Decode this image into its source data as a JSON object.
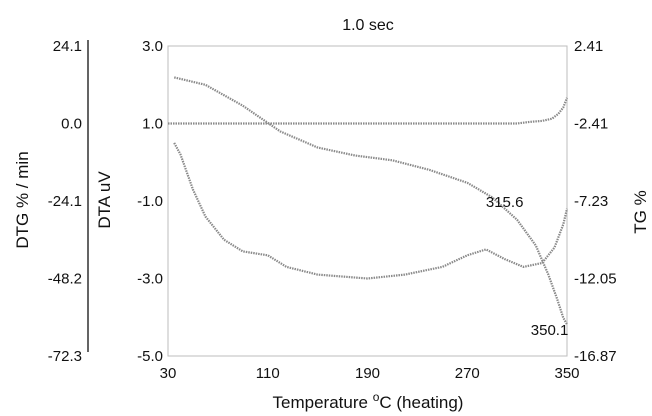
{
  "chart_data": {
    "type": "line",
    "title": "1.0 sec",
    "xlabel": "Temperature °C (heating)",
    "xlabel_parts": {
      "prefix": "Temperature ",
      "sup": "o",
      "suffix": "C (heating)"
    },
    "x_ticks": [
      "30",
      "110",
      "190",
      "270",
      "350"
    ],
    "xlim": [
      30,
      350
    ],
    "axes": {
      "dtg": {
        "label": "DTG % / min",
        "ticks": [
          "24.1",
          "0.0",
          "-24.1",
          "-48.2",
          "-72.3"
        ],
        "ylim": [
          -72.3,
          24.1
        ]
      },
      "dta": {
        "label": "DTA uV",
        "ticks": [
          "3.0",
          "1.0",
          "-1.0",
          "-3.0",
          "-5.0"
        ],
        "ylim": [
          -5.0,
          3.0
        ]
      },
      "tg": {
        "label": "TG %",
        "ticks": [
          "2.41",
          "-2.41",
          "-7.23",
          "-12.05",
          "-16.87"
        ],
        "ylim": [
          -16.87,
          2.41
        ]
      }
    },
    "annotations": [
      {
        "text": "315.6",
        "x": 300,
        "y_dta": -1.0
      },
      {
        "text": "350.1",
        "x": 336,
        "y_dta": -4.3
      }
    ],
    "series": [
      {
        "axis": "dtg",
        "color": "#8a8a8a",
        "points": [
          [
            30,
            0.0
          ],
          [
            70,
            0.0
          ],
          [
            150,
            0.0
          ],
          [
            250,
            0.0
          ],
          [
            310,
            0.0
          ],
          [
            320,
            0.5
          ],
          [
            330,
            0.8
          ],
          [
            338,
            1.5
          ],
          [
            343,
            3.0
          ],
          [
            347,
            5.0
          ],
          [
            350,
            8.0
          ]
        ]
      },
      {
        "axis": "tg",
        "color": "#8a8a8a",
        "points": [
          [
            35,
            0.46
          ],
          [
            60,
            0.0
          ],
          [
            90,
            -1.3
          ],
          [
            120,
            -2.9
          ],
          [
            150,
            -3.9
          ],
          [
            180,
            -4.4
          ],
          [
            210,
            -4.7
          ],
          [
            240,
            -5.3
          ],
          [
            270,
            -6.1
          ],
          [
            290,
            -7.0
          ],
          [
            310,
            -8.4
          ],
          [
            325,
            -10.0
          ],
          [
            335,
            -11.8
          ],
          [
            342,
            -13.3
          ],
          [
            347,
            -14.5
          ],
          [
            350,
            -14.9
          ]
        ]
      },
      {
        "axis": "dta",
        "color": "#8a8a8a",
        "points": [
          [
            35,
            0.5
          ],
          [
            40,
            0.2
          ],
          [
            50,
            -0.7
          ],
          [
            60,
            -1.4
          ],
          [
            75,
            -2.0
          ],
          [
            90,
            -2.3
          ],
          [
            110,
            -2.4
          ],
          [
            125,
            -2.7
          ],
          [
            150,
            -2.9
          ],
          [
            190,
            -3.0
          ],
          [
            220,
            -2.9
          ],
          [
            250,
            -2.7
          ],
          [
            270,
            -2.4
          ],
          [
            285,
            -2.25
          ],
          [
            300,
            -2.5
          ],
          [
            315,
            -2.7
          ],
          [
            330,
            -2.6
          ],
          [
            340,
            -2.2
          ],
          [
            347,
            -1.6
          ],
          [
            350,
            -1.2
          ]
        ]
      }
    ]
  }
}
